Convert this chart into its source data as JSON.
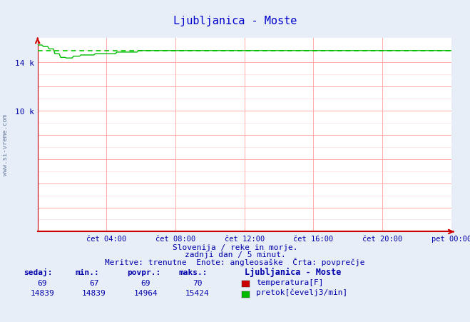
{
  "title": "Ljubljanica - Moste",
  "bg_color": "#e8eef8",
  "plot_bg_color": "#ffffff",
  "grid_color_major": "#ffaaaa",
  "grid_color_minor": "#ffdddd",
  "x_labels": [
    "čet 04:00",
    "čet 08:00",
    "čet 12:00",
    "čet 16:00",
    "čet 20:00",
    "pet 00:00"
  ],
  "x_ticks_norm": [
    0.1667,
    0.3333,
    0.5,
    0.6667,
    0.8333,
    1.0
  ],
  "y_ticks": [
    0,
    2000,
    4000,
    6000,
    8000,
    10000,
    12000,
    14000
  ],
  "y_tick_labels": [
    "",
    "",
    "",
    "",
    "",
    "10 k",
    "",
    "14 k"
  ],
  "y_min": 0,
  "y_max": 16000,
  "subtitle_line1": "Slovenija / reke in morje.",
  "subtitle_line2": "zadnji dan / 5 minut.",
  "subtitle_line3": "Meritve: trenutne  Enote: angleosaške  Črta: povprečje",
  "footer_headers": [
    "sedaj:",
    "min.:",
    "povpr.:",
    "maks.:"
  ],
  "footer_row1": [
    "69",
    "67",
    "69",
    "70"
  ],
  "footer_row2": [
    "14839",
    "14839",
    "14964",
    "15424"
  ],
  "legend_title": "Ljubljanica - Moste",
  "legend_items": [
    {
      "label": "temperatura[F]",
      "color": "#cc0000"
    },
    {
      "label": "pretok[čevelj3/min]",
      "color": "#00bb00"
    }
  ],
  "temp_color": "#cc0000",
  "flow_color": "#00bb00",
  "avg_line_color": "#00cc00",
  "avg_line_value": 14964,
  "title_color": "#0000cc",
  "axis_label_color": "#0000aa",
  "text_color": "#0000aa",
  "watermark_color": "#1a3a6b",
  "num_points": 288
}
